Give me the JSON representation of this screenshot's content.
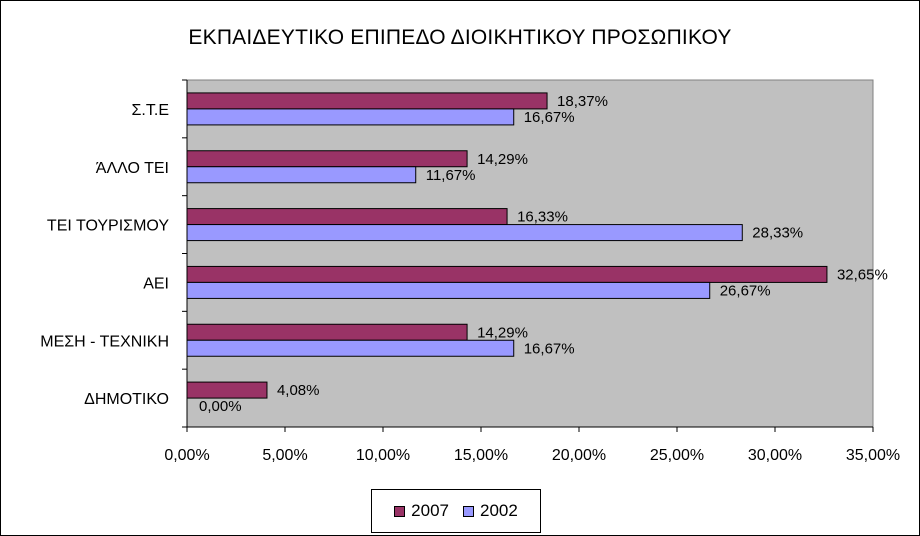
{
  "chart_data": {
    "type": "bar",
    "orientation": "horizontal",
    "title": "ΕΚΠΑΙΔΕΥΤΙΚΟ ΕΠΙΠΕΔΟ ΔΙΟΙΚΗΤΙΚΟΥ ΠΡΟΣΩΠΙΚΟΥ",
    "categories": [
      "Σ.Τ.Ε",
      "ΆΛΛΟ ΤΕΙ",
      "ΤΕΙ ΤΟΥΡΙΣΜΟΥ",
      "ΑΕΙ",
      "ΜΕΣΗ - ΤΕΧΝΙΚΗ",
      "ΔΗΜΟΤΙΚΟ"
    ],
    "series": [
      {
        "name": "2007",
        "color": "#993366",
        "values": [
          18.37,
          14.29,
          16.33,
          32.65,
          14.29,
          4.08
        ],
        "labels": [
          "18,37%",
          "14,29%",
          "16,33%",
          "32,65%",
          "14,29%",
          "4,08%"
        ]
      },
      {
        "name": "2002",
        "color": "#9999ff",
        "values": [
          16.67,
          11.67,
          28.33,
          26.67,
          16.67,
          0.0
        ],
        "labels": [
          "16,67%",
          "11,67%",
          "28,33%",
          "26,67%",
          "16,67%",
          "0,00%"
        ]
      }
    ],
    "xlim": [
      0,
      35
    ],
    "xticks": [
      0,
      5,
      10,
      15,
      20,
      25,
      30,
      35
    ],
    "xtick_labels": [
      "0,00%",
      "5,00%",
      "10,00%",
      "15,00%",
      "20,00%",
      "25,00%",
      "30,00%",
      "35,00%"
    ],
    "grid": false,
    "plot_background": "#c0c0c0",
    "legend_position": "bottom"
  }
}
